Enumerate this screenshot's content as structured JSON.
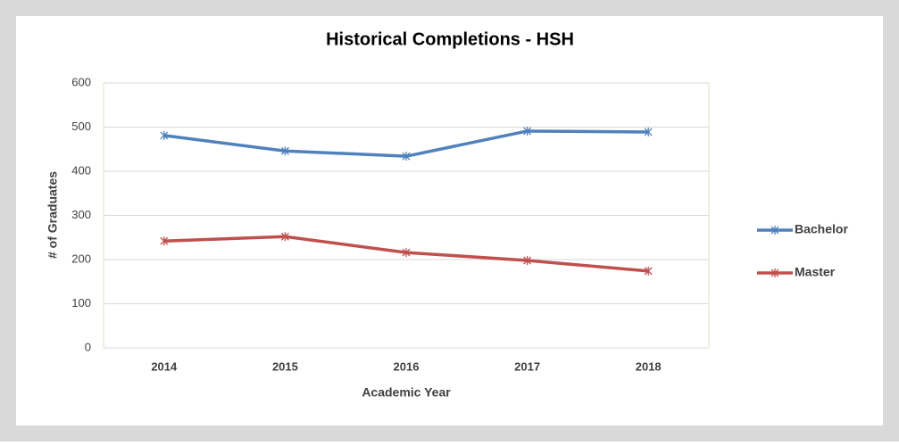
{
  "chart_data": {
    "type": "line",
    "title": "Historical Completions - HSH",
    "x_label": "Academic Year",
    "y_label": "# of Graduates",
    "categories": [
      "2014",
      "2015",
      "2016",
      "2017",
      "2018"
    ],
    "series": [
      {
        "name": "Bachelor",
        "color": "#4f81bd",
        "values": [
          481,
          446,
          434,
          491,
          489
        ]
      },
      {
        "name": "Master",
        "color": "#c0504d",
        "values": [
          242,
          252,
          216,
          198,
          174
        ]
      }
    ],
    "ylim": [
      0,
      600
    ],
    "yticks": [
      0,
      100,
      200,
      300,
      400,
      500,
      600
    ],
    "grid": true,
    "legend": "right"
  }
}
